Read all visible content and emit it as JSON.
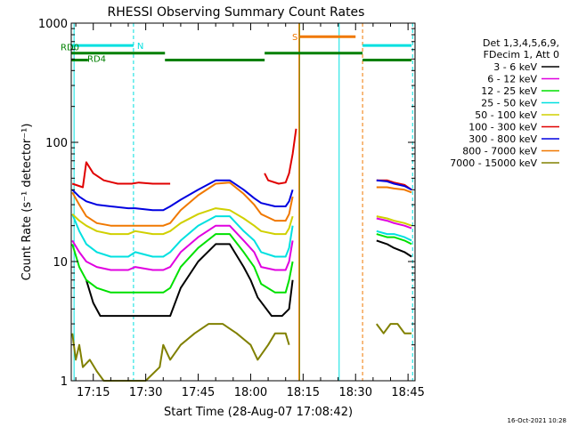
{
  "chart_data": {
    "type": "line",
    "title": "RHESSI Observing Summary Count Rates",
    "xlabel": "Start Time (28-Aug-07 17:08:42)",
    "ylabel": "Count Rate (s⁻¹ detector⁻¹)",
    "y_scale": "log",
    "ylim": [
      1,
      1000
    ],
    "xlim_minutes": [
      1028.7,
      1127
    ],
    "x_ticks": [
      {
        "label": "17:15",
        "value": 1035
      },
      {
        "label": "17:30",
        "value": 1050
      },
      {
        "label": "17:45",
        "value": 1065
      },
      {
        "label": "18:00",
        "value": 1080
      },
      {
        "label": "18:15",
        "value": 1095
      },
      {
        "label": "18:30",
        "value": 1110
      },
      {
        "label": "18:45",
        "value": 1125
      }
    ],
    "y_ticks": [
      {
        "label": "1",
        "value": 1
      },
      {
        "label": "10",
        "value": 10
      },
      {
        "label": "100",
        "value": 100
      },
      {
        "label": "1000",
        "value": 1000
      }
    ],
    "timestamp": "16-Oct-2021 10:28",
    "legend_header": [
      "Det 1,3,4,5,6,9,",
      "FDecim 1, Att 0"
    ],
    "series": [
      {
        "name": "3 - 6 keV",
        "color": "#000000",
        "segments": [
          [
            [
              1033,
              7
            ],
            [
              1035,
              4.5
            ],
            [
              1037,
              3.5
            ],
            [
              1044,
              3.5
            ],
            [
              1046,
              3.5
            ],
            [
              1047,
              3.5
            ],
            [
              1048,
              3.5
            ],
            [
              1052,
              3.5
            ],
            [
              1055,
              3.5
            ],
            [
              1057,
              3.5
            ],
            [
              1060,
              6
            ],
            [
              1065,
              10
            ],
            [
              1070,
              14
            ],
            [
              1074,
              14
            ],
            [
              1078,
              9
            ],
            [
              1080,
              7
            ],
            [
              1082,
              5
            ],
            [
              1086,
              3.5
            ],
            [
              1089,
              3.5
            ],
            [
              1091,
              4
            ],
            [
              1092,
              7
            ]
          ],
          [
            [
              1116,
              15
            ],
            [
              1119,
              14
            ],
            [
              1121,
              13
            ],
            [
              1124,
              12
            ],
            [
              1126,
              11
            ]
          ]
        ]
      },
      {
        "name": "6 - 12 keV",
        "color": "#e000e0",
        "segments": [
          [
            [
              1029,
              15
            ],
            [
              1031,
              12
            ],
            [
              1033,
              10
            ],
            [
              1036,
              9
            ],
            [
              1040,
              8.5
            ],
            [
              1045,
              8.5
            ],
            [
              1047,
              9
            ],
            [
              1052,
              8.5
            ],
            [
              1055,
              8.5
            ],
            [
              1057,
              9
            ],
            [
              1060,
              12
            ],
            [
              1065,
              16
            ],
            [
              1070,
              20
            ],
            [
              1074,
              20
            ],
            [
              1078,
              15
            ],
            [
              1081,
              12
            ],
            [
              1083,
              9
            ],
            [
              1087,
              8.5
            ],
            [
              1090,
              8.5
            ],
            [
              1091,
              10
            ],
            [
              1092,
              15
            ]
          ],
          [
            [
              1116,
              23
            ],
            [
              1119,
              22
            ],
            [
              1121,
              21
            ],
            [
              1124,
              20
            ],
            [
              1126,
              19
            ]
          ]
        ]
      },
      {
        "name": "12 - 25 keV",
        "color": "#00e000",
        "segments": [
          [
            [
              1029,
              14
            ],
            [
              1031,
              9
            ],
            [
              1033,
              7
            ],
            [
              1036,
              6
            ],
            [
              1040,
              5.5
            ],
            [
              1045,
              5.5
            ],
            [
              1047,
              5.5
            ],
            [
              1052,
              5.5
            ],
            [
              1055,
              5.5
            ],
            [
              1057,
              6
            ],
            [
              1060,
              9
            ],
            [
              1065,
              13
            ],
            [
              1070,
              17
            ],
            [
              1074,
              17
            ],
            [
              1078,
              12
            ],
            [
              1081,
              9
            ],
            [
              1083,
              6.5
            ],
            [
              1087,
              5.5
            ],
            [
              1090,
              5.5
            ],
            [
              1091,
              7
            ],
            [
              1092,
              10
            ]
          ],
          [
            [
              1116,
              17
            ],
            [
              1119,
              16
            ],
            [
              1121,
              16
            ],
            [
              1124,
              15
            ],
            [
              1126,
              14
            ]
          ]
        ]
      },
      {
        "name": "25 - 50 keV",
        "color": "#00e0e0",
        "segments": [
          [
            [
              1029,
              25
            ],
            [
              1031,
              18
            ],
            [
              1033,
              14
            ],
            [
              1036,
              12
            ],
            [
              1040,
              11
            ],
            [
              1045,
              11
            ],
            [
              1047,
              12
            ],
            [
              1052,
              11
            ],
            [
              1055,
              11
            ],
            [
              1057,
              12
            ],
            [
              1060,
              15
            ],
            [
              1065,
              20
            ],
            [
              1070,
              24
            ],
            [
              1074,
              24
            ],
            [
              1078,
              18
            ],
            [
              1081,
              15
            ],
            [
              1083,
              12
            ],
            [
              1087,
              11
            ],
            [
              1090,
              11
            ],
            [
              1091,
              13
            ],
            [
              1092,
              20
            ]
          ],
          [
            [
              1116,
              18
            ],
            [
              1119,
              17
            ],
            [
              1121,
              17
            ],
            [
              1124,
              16
            ],
            [
              1126,
              15
            ]
          ]
        ]
      },
      {
        "name": "50 - 100 keV",
        "color": "#d0d000",
        "segments": [
          [
            [
              1029,
              25
            ],
            [
              1031,
              22
            ],
            [
              1033,
              20
            ],
            [
              1036,
              18
            ],
            [
              1040,
              17
            ],
            [
              1045,
              17
            ],
            [
              1047,
              18
            ],
            [
              1052,
              17
            ],
            [
              1055,
              17
            ],
            [
              1057,
              18
            ],
            [
              1060,
              21
            ],
            [
              1065,
              25
            ],
            [
              1070,
              28
            ],
            [
              1074,
              27
            ],
            [
              1078,
              23
            ],
            [
              1081,
              20
            ],
            [
              1083,
              18
            ],
            [
              1087,
              17
            ],
            [
              1090,
              17
            ],
            [
              1091,
              19
            ],
            [
              1092,
              24
            ]
          ],
          [
            [
              1116,
              24
            ],
            [
              1119,
              23
            ],
            [
              1121,
              22
            ],
            [
              1124,
              21
            ],
            [
              1126,
              20
            ]
          ]
        ]
      },
      {
        "name": "100 - 300 keV",
        "color": "#e00000",
        "segments": [
          [
            [
              1029,
              45
            ],
            [
              1032,
              42
            ],
            [
              1033,
              68
            ],
            [
              1035,
              55
            ],
            [
              1038,
              48
            ],
            [
              1042,
              45
            ],
            [
              1046,
              45
            ],
            [
              1048,
              46
            ],
            [
              1052,
              45
            ],
            [
              1055,
              45
            ],
            [
              1057,
              45
            ]
          ],
          [
            [
              1084,
              55
            ],
            [
              1085,
              48
            ],
            [
              1088,
              45
            ],
            [
              1090,
              46
            ],
            [
              1091,
              55
            ],
            [
              1092,
              80
            ],
            [
              1093,
              130
            ]
          ],
          [
            [
              1116,
              48
            ],
            [
              1119,
              48
            ],
            [
              1121,
              46
            ],
            [
              1124,
              44
            ],
            [
              1126,
              40
            ]
          ]
        ]
      },
      {
        "name": "300 - 800 keV",
        "color": "#0000e0",
        "segments": [
          [
            [
              1029,
              40
            ],
            [
              1031,
              35
            ],
            [
              1033,
              32
            ],
            [
              1036,
              30
            ],
            [
              1040,
              29
            ],
            [
              1045,
              28
            ],
            [
              1047,
              28
            ],
            [
              1052,
              27
            ],
            [
              1055,
              27
            ],
            [
              1057,
              29
            ],
            [
              1060,
              33
            ],
            [
              1065,
              40
            ],
            [
              1070,
              48
            ],
            [
              1074,
              48
            ],
            [
              1078,
              40
            ],
            [
              1081,
              34
            ],
            [
              1083,
              31
            ],
            [
              1087,
              29
            ],
            [
              1090,
              29
            ],
            [
              1091,
              32
            ],
            [
              1092,
              40
            ]
          ],
          [
            [
              1116,
              48
            ],
            [
              1119,
              47
            ],
            [
              1121,
              45
            ],
            [
              1124,
              43
            ],
            [
              1126,
              40
            ]
          ]
        ]
      },
      {
        "name": "800 - 7000 keV",
        "color": "#f07800",
        "segments": [
          [
            [
              1029,
              38
            ],
            [
              1031,
              30
            ],
            [
              1033,
              24
            ],
            [
              1036,
              21
            ],
            [
              1040,
              20
            ],
            [
              1045,
              20
            ],
            [
              1047,
              20
            ],
            [
              1052,
              20
            ],
            [
              1055,
              20
            ],
            [
              1057,
              21
            ],
            [
              1060,
              27
            ],
            [
              1065,
              36
            ],
            [
              1070,
              45
            ],
            [
              1074,
              46
            ],
            [
              1078,
              37
            ],
            [
              1081,
              30
            ],
            [
              1083,
              25
            ],
            [
              1087,
              22
            ],
            [
              1090,
              22
            ],
            [
              1091,
              25
            ],
            [
              1092,
              35
            ]
          ],
          [
            [
              1116,
              42
            ],
            [
              1119,
              42
            ],
            [
              1121,
              41
            ],
            [
              1124,
              40
            ],
            [
              1126,
              38
            ]
          ]
        ]
      },
      {
        "name": "7000 - 15000 keV",
        "color": "#808000",
        "segments": [
          [
            [
              1029,
              2.5
            ],
            [
              1030,
              1.5
            ],
            [
              1031,
              2
            ],
            [
              1032,
              1.3
            ],
            [
              1034,
              1.5
            ],
            [
              1036,
              1.2
            ],
            [
              1038,
              1.0
            ],
            [
              1042,
              1.0
            ],
            [
              1046,
              1.0
            ],
            [
              1050,
              1.0
            ],
            [
              1054,
              1.3
            ],
            [
              1055,
              2
            ],
            [
              1057,
              1.5
            ],
            [
              1060,
              2
            ],
            [
              1064,
              2.5
            ],
            [
              1068,
              3
            ],
            [
              1072,
              3
            ],
            [
              1076,
              2.5
            ],
            [
              1080,
              2
            ],
            [
              1082,
              1.5
            ],
            [
              1085,
              2
            ],
            [
              1087,
              2.5
            ],
            [
              1090,
              2.5
            ],
            [
              1091,
              2
            ]
          ],
          [
            [
              1116,
              3
            ],
            [
              1118,
              2.5
            ],
            [
              1120,
              3
            ],
            [
              1122,
              3
            ],
            [
              1124,
              2.5
            ],
            [
              1126,
              2.5
            ]
          ]
        ]
      }
    ],
    "state_bars": [
      {
        "label": "N",
        "color": "#00e0e0",
        "level": 650,
        "x_ranges": [
          [
            1028.7,
            1046.5
          ],
          [
            1112,
            1126
          ]
        ]
      },
      {
        "label": "S",
        "color": "#f07800",
        "level": 770,
        "x_ranges": [
          [
            1094,
            1110
          ]
        ]
      },
      {
        "label": "RD0",
        "color": "#008000",
        "level": 560,
        "x_ranges": [
          [
            1028.7,
            1055.5
          ],
          [
            1084,
            1112
          ]
        ]
      },
      {
        "label": "RD4",
        "color": "#008000",
        "level": 490,
        "x_ranges": [
          [
            1028.7,
            1033.5
          ],
          [
            1055.5,
            1084
          ],
          [
            1112,
            1126
          ]
        ]
      }
    ],
    "vlines": [
      {
        "x": 1029.5,
        "color": "#00e0e0",
        "dashed": false
      },
      {
        "x": 1046.5,
        "color": "#00e0e0",
        "dashed": true
      },
      {
        "x": 1093.8,
        "color": "#f07800",
        "dashed": false
      },
      {
        "x": 1094.0,
        "color": "#808000",
        "dashed": false
      },
      {
        "x": 1105.3,
        "color": "#00e0e0",
        "dashed": false
      },
      {
        "x": 1112.0,
        "color": "#f07800",
        "dashed": true
      },
      {
        "x": 1126.3,
        "color": "#00e0e0",
        "dashed": true
      }
    ]
  }
}
